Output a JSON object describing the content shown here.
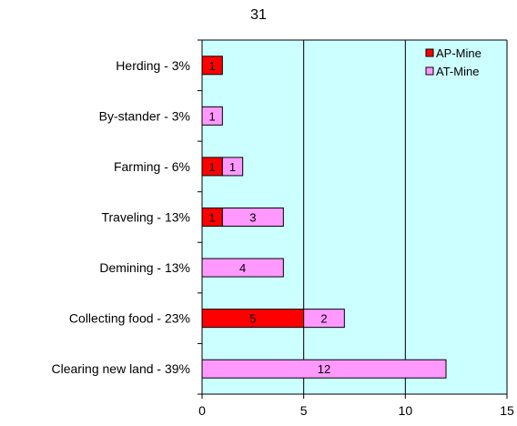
{
  "chart_data": {
    "type": "bar",
    "orientation": "horizontal",
    "stacked": true,
    "title": "31",
    "categories": [
      "Herding - 3%",
      "By-stander - 3%",
      "Farming - 6%",
      "Traveling - 13%",
      "Demining - 13%",
      "Collecting food - 23%",
      "Clearing new land - 39%"
    ],
    "series": [
      {
        "name": "AP-Mine",
        "color": "#ff0000",
        "values": [
          1,
          0,
          1,
          1,
          0,
          5,
          0
        ]
      },
      {
        "name": "AT-Mine",
        "color": "#ff99ff",
        "values": [
          0,
          1,
          1,
          3,
          4,
          2,
          12
        ]
      }
    ],
    "xlim": [
      0,
      15
    ],
    "xticks": [
      0,
      5,
      10,
      15
    ],
    "grid": "vertical at major ticks",
    "plot_background": "#ccffff",
    "legend_position": "top-right inside plot"
  }
}
